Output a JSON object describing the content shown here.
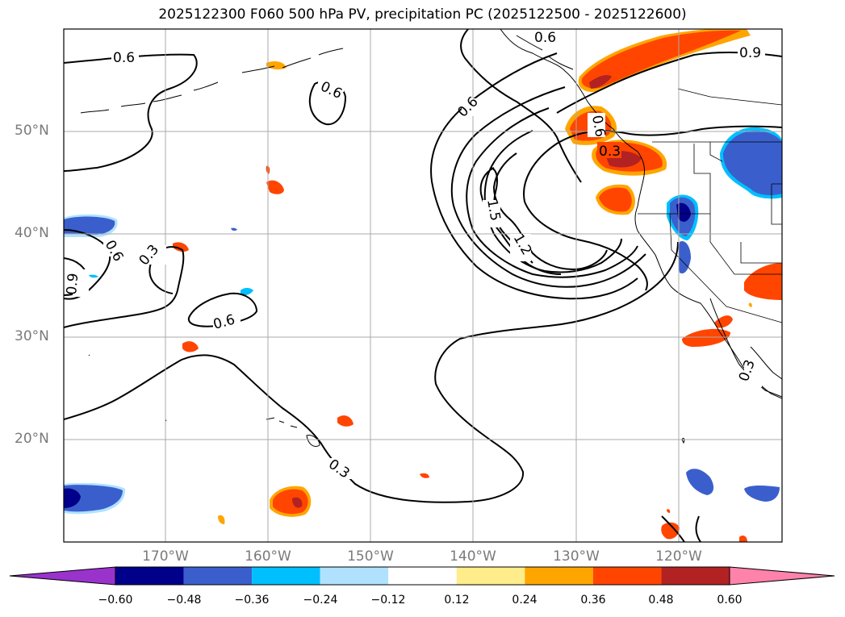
{
  "title": "2025122300 F060 500 hPa PV, precipitation PC (2025122500 - 2025122600)",
  "lat_labels": [
    "50°N",
    "40°N",
    "30°N",
    "20°N"
  ],
  "lon_labels": [
    "170°W",
    "160°W",
    "150°W",
    "140°W",
    "130°W",
    "120°W"
  ],
  "contour_labels": [
    "0.6",
    "0.6",
    "0.6",
    "0.6",
    "0.9",
    "0.6",
    "0.3",
    "0.6",
    "0.9",
    "0.6",
    "0.3",
    "1.5",
    "1.2",
    "0.3",
    "0.3"
  ],
  "colorbar": {
    "ticks": [
      "−0.60",
      "−0.48",
      "−0.36",
      "−0.24",
      "−0.12",
      "0.12",
      "0.24",
      "0.36",
      "0.48",
      "0.60"
    ],
    "colors": [
      "#9933cc",
      "#00008b",
      "#3a5fcd",
      "#00bfff",
      "#b0e2ff",
      "#ffffff",
      "#ffec8b",
      "#ffa500",
      "#ff4500",
      "#b22222",
      "#ff82ab"
    ]
  },
  "colors": {
    "gridline": "#aaaaaa",
    "contour": "#000000",
    "axis_label": "#7a7a7a"
  }
}
